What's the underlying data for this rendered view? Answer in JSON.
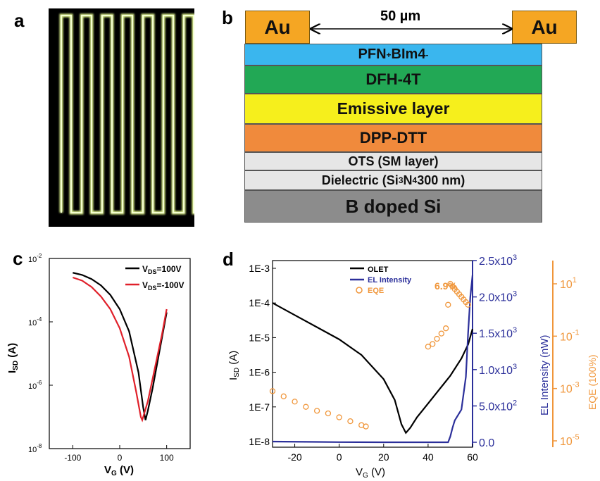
{
  "panels": {
    "a": {
      "letter": "a"
    },
    "b": {
      "letter": "b",
      "gap_label": "50 µm",
      "electrode_left": "Au",
      "electrode_right": "Au",
      "layers": [
        {
          "label": "PFN",
          "sup1": "+",
          "mid": "BIm4",
          "sup2": "-",
          "color": "#3ab6ee"
        },
        {
          "label": "DFH-4T",
          "color": "#22a855"
        },
        {
          "label": "Emissive layer",
          "color": "#f6ef1c"
        },
        {
          "label": "DPP-DTT",
          "color": "#f08a3c"
        },
        {
          "label": "OTS (SM layer)",
          "color": "#e6e6e6"
        },
        {
          "label_pre": "Dielectric (Si",
          "sub1": "3",
          "label_mid": "N",
          "sub2": "4",
          "label_post": " 300 nm)",
          "color": "#e6e6e6"
        },
        {
          "label": "B doped Si",
          "color": "#8c8c8c"
        }
      ]
    },
    "c": {
      "letter": "c"
    },
    "d": {
      "letter": "d"
    }
  },
  "chart_data": [
    {
      "type": "line",
      "panel": "c",
      "xlabel_main": "V",
      "xlabel_sub": "G",
      "xlabel_unit": " (V)",
      "ylabel_main": "I",
      "ylabel_sub": "SD",
      "ylabel_unit": " (A)",
      "xlim": [
        -150,
        150
      ],
      "ylim_log10": [
        -8,
        -2
      ],
      "yscale": "log",
      "x_ticks": [
        "-100",
        "0",
        "100"
      ],
      "y_ticks": [
        {
          "base": "10",
          "exp": "-2",
          "value": -2
        },
        {
          "base": "10",
          "exp": "-4",
          "value": -4
        },
        {
          "base": "10",
          "exp": "-6",
          "value": -6
        },
        {
          "base": "10",
          "exp": "-8",
          "value": -8
        }
      ],
      "series": [
        {
          "name_main": "V",
          "name_sub": "DS",
          "name_val": "=100V",
          "color": "#000000",
          "x": [
            -100,
            -80,
            -60,
            -40,
            -20,
            0,
            20,
            40,
            50,
            55,
            60,
            70,
            80,
            90,
            100
          ],
          "log10_y": [
            -2.45,
            -2.52,
            -2.65,
            -2.85,
            -3.15,
            -3.6,
            -4.3,
            -5.6,
            -6.7,
            -7.1,
            -6.8,
            -6.1,
            -5.3,
            -4.5,
            -3.7
          ]
        },
        {
          "name_main": "V",
          "name_sub": "DS",
          "name_val": "=-100V",
          "color": "#e0202a",
          "x": [
            -100,
            -80,
            -60,
            -40,
            -20,
            0,
            20,
            35,
            45,
            48,
            52,
            60,
            70,
            80,
            90,
            100
          ],
          "log10_y": [
            -2.6,
            -2.7,
            -2.9,
            -3.2,
            -3.6,
            -4.2,
            -5.1,
            -6.2,
            -7.0,
            -7.1,
            -6.9,
            -6.5,
            -5.8,
            -5.1,
            -4.4,
            -3.6
          ]
        }
      ]
    },
    {
      "type": "line",
      "panel": "d",
      "xlabel_main": "V",
      "xlabel_sub": "G",
      "xlabel_unit": " (V)",
      "ylabel_main": "I",
      "ylabel_sub": "SD",
      "ylabel_unit": " (A)",
      "y2label": "EL Intensity (nW)",
      "y3label": "EQE (100%)",
      "xlim": [
        -30,
        60
      ],
      "x_ticks": [
        "-20",
        "0",
        "20",
        "40",
        "60"
      ],
      "y_ticks": [
        "1E-3",
        "1E-4",
        "1E-5",
        "1E-6",
        "1E-7",
        "1E-8"
      ],
      "y_ticks_log10": [
        -3,
        -4,
        -5,
        -6,
        -7,
        -8
      ],
      "y2_ticks": [
        {
          "mant": "0.0",
          "exp": "",
          "value": 0
        },
        {
          "mant": "5.0x10",
          "exp": "2",
          "value": 500
        },
        {
          "mant": "1.0x10",
          "exp": "3",
          "value": 1000
        },
        {
          "mant": "1.5x10",
          "exp": "3",
          "value": 1500
        },
        {
          "mant": "2.0x10",
          "exp": "3",
          "value": 2000
        },
        {
          "mant": "2.5x10",
          "exp": "3",
          "value": 2500
        }
      ],
      "y3_ticks": [
        {
          "base": "10",
          "exp": "1",
          "value": 1
        },
        {
          "base": "10",
          "exp": "-1",
          "value": -1
        },
        {
          "base": "10",
          "exp": "-3",
          "value": -3
        },
        {
          "base": "10",
          "exp": "-5",
          "value": -5
        }
      ],
      "annotation": "6.9%",
      "legend": [
        "OLET",
        "EL Intensity",
        "EQE"
      ],
      "series": [
        {
          "name": "OLET",
          "color": "#000000",
          "x": [
            -30,
            -20,
            -10,
            0,
            10,
            20,
            25,
            28,
            30,
            32,
            35,
            40,
            45,
            50,
            55,
            58,
            60
          ],
          "log10_y": [
            -4.0,
            -4.35,
            -4.7,
            -5.05,
            -5.5,
            -6.2,
            -6.8,
            -7.5,
            -7.75,
            -7.6,
            -7.3,
            -6.9,
            -6.5,
            -6.1,
            -5.6,
            -5.2,
            -4.75
          ]
        },
        {
          "name": "EL Intensity",
          "color": "#2b2f9a",
          "x": [
            -30,
            -10,
            0,
            20,
            40,
            49,
            50,
            51,
            52,
            55,
            57,
            58,
            59,
            60
          ],
          "y2": [
            10,
            5,
            2,
            0,
            0,
            0,
            80,
            200,
            300,
            450,
            900,
            1500,
            2000,
            2300
          ]
        },
        {
          "name": "EQE",
          "color": "#f0963a",
          "x": [
            -30,
            -25,
            -20,
            -15,
            -10,
            -5,
            0,
            5,
            10,
            12,
            40,
            42,
            44,
            46,
            48,
            49,
            50,
            51,
            52,
            53,
            54,
            55,
            56,
            57,
            58
          ],
          "log10_eqe": [
            -3.1,
            -3.3,
            -3.5,
            -3.7,
            -3.85,
            -3.95,
            -4.1,
            -4.25,
            -4.4,
            -4.45,
            -1.4,
            -1.3,
            -1.1,
            -0.9,
            -0.7,
            0.2,
            1.0,
            0.9,
            0.8,
            0.7,
            0.6,
            0.5,
            0.4,
            0.3,
            0.2
          ]
        }
      ]
    }
  ]
}
